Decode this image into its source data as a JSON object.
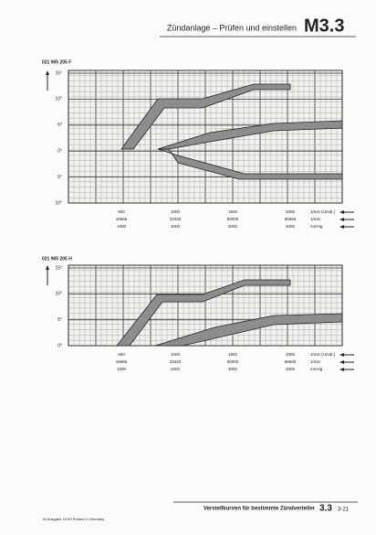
{
  "header": {
    "title": "Zündanlage – Prüfen und einstellen",
    "section": "M3.3"
  },
  "charts": [
    {
      "label": "021 905 205 F",
      "y_labels": [
        "15°",
        "10°",
        "5°",
        "0°",
        "5°",
        "10°"
      ],
      "x_rows": [
        {
          "values": [
            "500",
            "1000",
            "1500",
            "2000"
          ],
          "unit": "1/min (Umdr.)"
        },
        {
          "values": [
            "16666",
            "33333",
            "50000",
            "66666"
          ],
          "unit": "1/min"
        },
        {
          "values": [
            "1000",
            "2000",
            "3000",
            "4000"
          ],
          "unit": "mmHg"
        }
      ]
    },
    {
      "label": "021 905 205 H",
      "y_labels": [
        "15°",
        "10°",
        "5°",
        "0°"
      ],
      "x_rows": [
        {
          "values": [
            "500",
            "1000",
            "1500",
            "2000"
          ],
          "unit": "1/min (Umdr.)"
        },
        {
          "values": [
            "16666",
            "33333",
            "50000",
            "66666"
          ],
          "unit": "1/min"
        },
        {
          "values": [
            "1000",
            "2000",
            "3000",
            "4000"
          ],
          "unit": "mmHg"
        }
      ]
    }
  ],
  "footer": {
    "caption": "Verstellkurven für bestimmte Zündverteiler",
    "section": "3.3",
    "page": "3-21",
    "imprint": "W  Ausgabe 10.69  Printed in Germany"
  }
}
